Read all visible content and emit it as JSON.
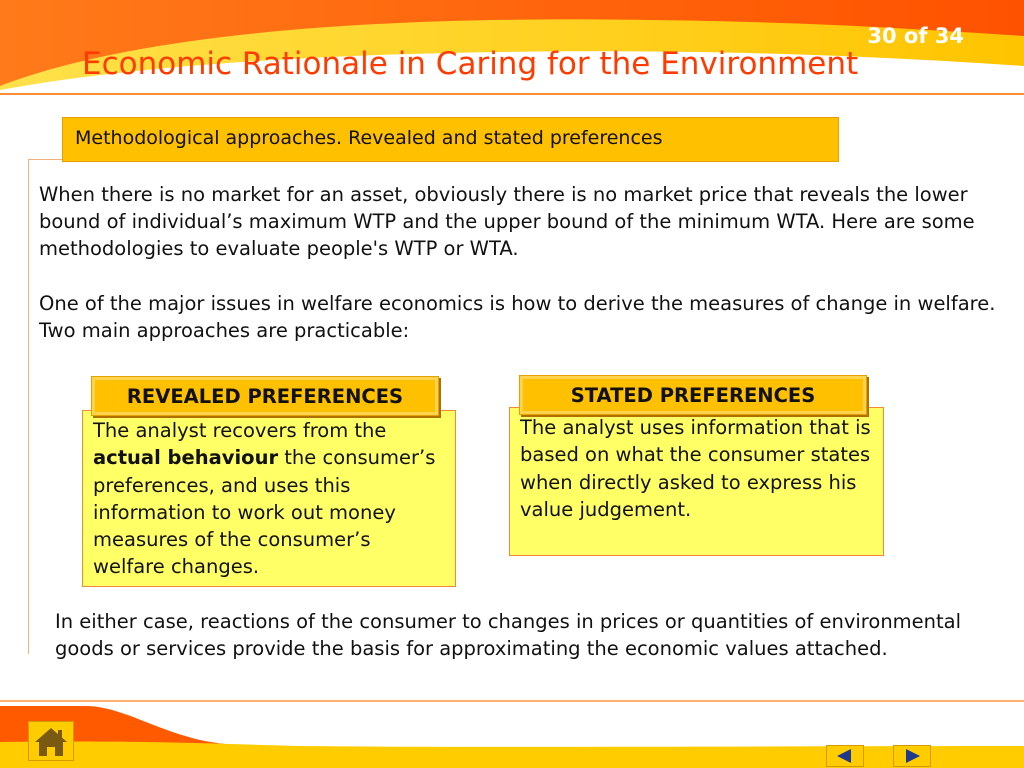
{
  "slide": {
    "counter": "30 of 34",
    "title": "Economic Rationale in Caring for the Environment",
    "section_label": "Methodological approaches. Revealed and stated preferences"
  },
  "paragraphs": {
    "p1": "When there is no market for an asset, obviously there is no market price that reveals the lower bound of individual’s maximum WTP and the upper bound of the minimum WTA.  Here are some methodologies to evaluate people's WTP or WTA.",
    "p2": "One of the major issues  in welfare economics is how to derive the measures of change in welfare. Two main approaches are practicable:",
    "p3": "In either case, reactions of the consumer to changes in prices or quantities of environmental goods or services provide the basis for approximating the economic values attached."
  },
  "revealed": {
    "heading": "REVEALED PREFERENCES",
    "text_before": "The analyst recovers from the ",
    "text_bold": "actual behaviour",
    "text_after": " the consumer’s preferences, and uses this information to work out money measures of  the consumer’s welfare changes."
  },
  "stated": {
    "heading": "STATED PREFERENCES",
    "text": "The analyst uses information that is based on what the consumer states when directly asked to express his value judgement."
  },
  "icons": {
    "home": "home-icon",
    "prev": "triangle-left-icon",
    "next": "triangle-right-icon"
  },
  "colors": {
    "header_orange": "#ff5a00",
    "header_swoosh": "#ffd21c",
    "title_red": "#ff3b00",
    "label_gold": "#ffc000",
    "box_yellow": "#ffff66",
    "footer_gold": "#ffcc00"
  }
}
